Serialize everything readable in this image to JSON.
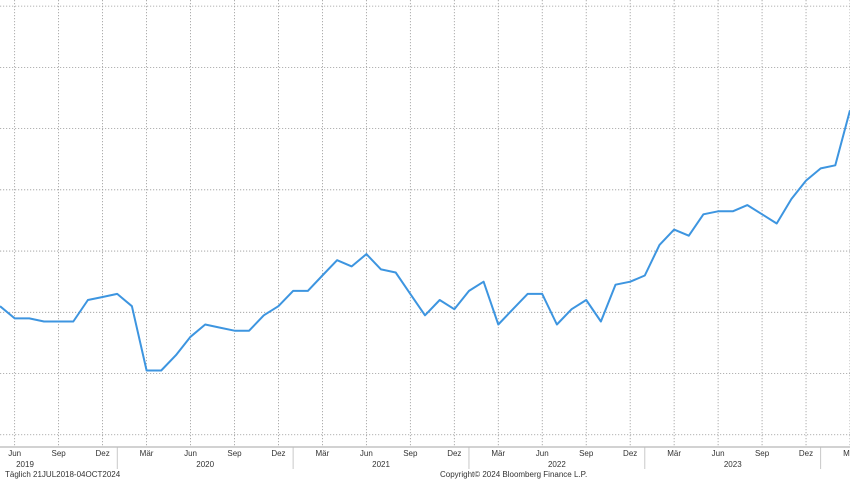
{
  "chart_data": {
    "type": "line",
    "x": [
      "2019-05",
      "2019-06",
      "2019-07",
      "2019-08",
      "2019-09",
      "2019-10",
      "2019-11",
      "2019-12",
      "2020-01",
      "2020-02",
      "2020-03",
      "2020-04",
      "2020-05",
      "2020-06",
      "2020-07",
      "2020-08",
      "2020-09",
      "2020-10",
      "2020-11",
      "2020-12",
      "2021-01",
      "2021-02",
      "2021-03",
      "2021-04",
      "2021-05",
      "2021-06",
      "2021-07",
      "2021-08",
      "2021-09",
      "2021-10",
      "2021-11",
      "2021-12",
      "2022-01",
      "2022-02",
      "2022-03",
      "2022-04",
      "2022-05",
      "2022-06",
      "2022-07",
      "2022-08",
      "2022-09",
      "2022-10",
      "2022-11",
      "2022-12",
      "2023-01",
      "2023-02",
      "2023-03",
      "2023-04",
      "2023-05",
      "2023-06",
      "2023-07",
      "2023-08",
      "2023-09",
      "2023-10",
      "2023-11",
      "2023-12",
      "2024-01",
      "2024-02",
      "2024-03"
    ],
    "series": [
      {
        "color": "#3d95e0",
        "values": [
          2.1,
          1.9,
          1.9,
          1.85,
          1.85,
          1.85,
          2.2,
          2.25,
          2.3,
          2.1,
          1.05,
          1.05,
          1.3,
          1.6,
          1.8,
          1.75,
          1.7,
          1.7,
          1.95,
          2.1,
          2.35,
          2.35,
          2.6,
          2.85,
          2.75,
          2.95,
          2.7,
          2.65,
          2.3,
          1.95,
          2.2,
          2.05,
          2.35,
          2.5,
          1.8,
          2.05,
          2.3,
          2.3,
          1.8,
          2.05,
          2.2,
          1.85,
          2.45,
          2.5,
          2.6,
          3.1,
          3.35,
          3.25,
          3.6,
          3.65,
          3.65,
          3.75,
          3.6,
          3.45,
          3.85,
          4.15,
          4.35,
          4.4,
          5.3
        ]
      }
    ],
    "xlim": [
      "2019-05",
      "2024-03"
    ],
    "ylim": [
      -0.2,
      7.1
    ],
    "yticks": [
      0,
      1,
      2,
      3,
      4,
      5,
      6,
      7
    ],
    "xticks": [
      {
        "value": "2019-06",
        "label": "Jun"
      },
      {
        "value": "2019-09",
        "label": "Sep"
      },
      {
        "value": "2019-12",
        "label": "Dez"
      },
      {
        "value": "2020-03",
        "label": "Mär"
      },
      {
        "value": "2020-06",
        "label": "Jun"
      },
      {
        "value": "2020-09",
        "label": "Sep"
      },
      {
        "value": "2020-12",
        "label": "Dez"
      },
      {
        "value": "2021-03",
        "label": "Mär"
      },
      {
        "value": "2021-06",
        "label": "Jun"
      },
      {
        "value": "2021-09",
        "label": "Sep"
      },
      {
        "value": "2021-12",
        "label": "Dez"
      },
      {
        "value": "2022-03",
        "label": "Mär"
      },
      {
        "value": "2022-06",
        "label": "Jun"
      },
      {
        "value": "2022-09",
        "label": "Sep"
      },
      {
        "value": "2022-12",
        "label": "Dez"
      },
      {
        "value": "2023-03",
        "label": "Mär"
      },
      {
        "value": "2023-06",
        "label": "Jun"
      },
      {
        "value": "2023-09",
        "label": "Sep"
      },
      {
        "value": "2023-12",
        "label": "Dez"
      },
      {
        "value": "2024-03",
        "label": "Mär"
      }
    ],
    "year_labels": [
      "2019",
      "2020",
      "2021",
      "2022",
      "2023"
    ],
    "grid": true,
    "footer_left": "Täglich 21JUL2018-04OCT2024",
    "footer_center": "Copyright© 2024 Bloomberg Finance L.P."
  }
}
